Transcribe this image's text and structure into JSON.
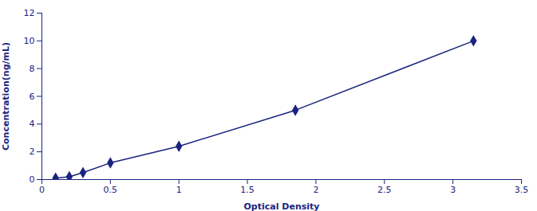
{
  "chart_data": {
    "type": "line",
    "x": [
      0.1,
      0.2,
      0.3,
      0.5,
      1.0,
      1.85,
      3.15
    ],
    "values": [
      0.1,
      0.2,
      0.5,
      1.2,
      2.4,
      5.0,
      10.0
    ],
    "color": "#1a237e",
    "marker": "diamond",
    "line_style": "solid",
    "xlabel": "Optical Density",
    "ylabel": "Concentration(ng/mL)",
    "xlim": [
      0,
      3.5
    ],
    "ylim": [
      0,
      12
    ],
    "xticks": [
      0,
      0.5,
      1.0,
      1.5,
      2.0,
      2.5,
      3.0,
      3.5
    ],
    "yticks": [
      0,
      2,
      4,
      6,
      8,
      10,
      12
    ],
    "grid": false
  }
}
